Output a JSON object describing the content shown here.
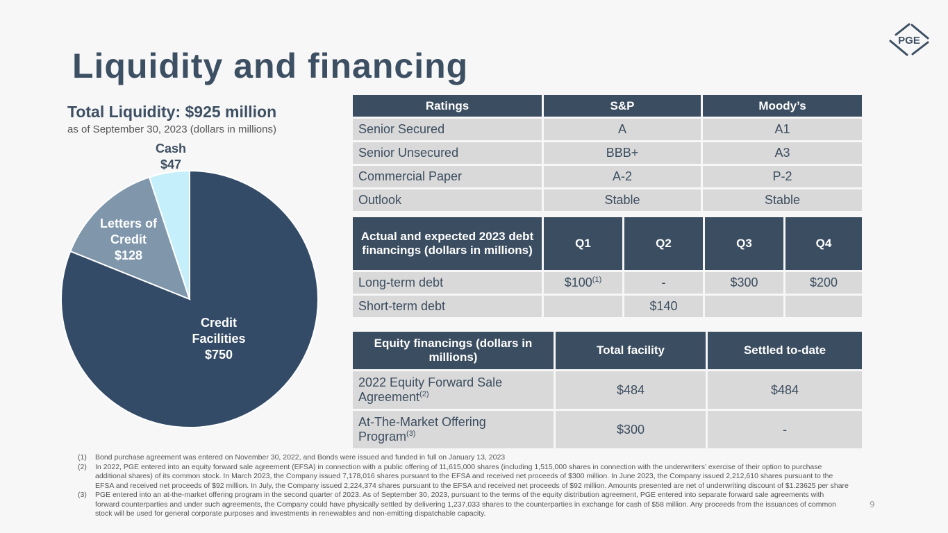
{
  "title": "Liquidity and financing",
  "logo": "PGE",
  "liquidity": {
    "title": "Total Liquidity: $925 million",
    "subtitle": "as of September 30, 2023 (dollars in millions)"
  },
  "chart_data": {
    "type": "pie",
    "title": "Total Liquidity: $925 million",
    "subtitle": "as of September 30, 2023 (dollars in millions)",
    "slices": [
      {
        "label": "Credit Facilities",
        "value": 750,
        "value_label": "$750",
        "color": "#334b66"
      },
      {
        "label": "Letters of Credit",
        "value": 128,
        "value_label": "$128",
        "color": "#7f96ab"
      },
      {
        "label": "Cash",
        "value": 47,
        "value_label": "$47",
        "color": "#c5f0fb"
      }
    ]
  },
  "ratings": {
    "headers": [
      "Ratings",
      "S&P",
      "Moody’s"
    ],
    "rows": [
      [
        "Senior Secured",
        "A",
        "A1"
      ],
      [
        "Senior Unsecured",
        "BBB+",
        "A3"
      ],
      [
        "Commercial Paper",
        "A-2",
        "P-2"
      ],
      [
        "Outlook",
        "Stable",
        "Stable"
      ]
    ]
  },
  "debt": {
    "headers": [
      "Actual and expected 2023 debt financings (dollars in millions)",
      "Q1",
      "Q2",
      "Q3",
      "Q4"
    ],
    "rows": [
      [
        "Long-term debt",
        "$100",
        "-",
        "$300",
        "$200"
      ],
      [
        "Short-term debt",
        "",
        "$140",
        "",
        ""
      ]
    ],
    "q1_note": "(1)"
  },
  "equity": {
    "headers": [
      "Equity financings (dollars in millions)",
      "Total facility",
      "Settled to-date"
    ],
    "rows": [
      [
        "2022 Equity Forward Sale Agreement",
        "$484",
        "$484"
      ],
      [
        "At-The-Market Offering Program",
        "$300",
        "-"
      ]
    ],
    "notes": [
      "(2)",
      "(3)"
    ]
  },
  "footnotes": [
    {
      "n": "(1)",
      "text": "Bond purchase agreement was entered on November 30, 2022, and Bonds were issued and funded in full on January 13, 2023"
    },
    {
      "n": "(2)",
      "text": "In 2022, PGE entered into an equity forward sale agreement (EFSA) in connection with a public offering of 11,615,000 shares (including 1,515,000 shares in connection with the underwriters’ exercise of their option to purchase additional shares) of its common stock. In March 2023, the Company issued 7,178,016 shares pursuant to the EFSA and received net proceeds of $300 million. In June 2023, the Company issued 2,212,610 shares pursuant to the EFSA and received net proceeds of $92 million. In July, the Company issued 2,224,374 shares pursuant to the EFSA and received net proceeds of $92 million. Amounts presented are net of underwriting discount of $1.23625 per share"
    },
    {
      "n": "(3)",
      "text": "PGE entered into an at-the-market offering program in the second quarter of 2023. As of September 30, 2023, pursuant to the terms of the equity distribution agreement, PGE entered into separate forward sale agreements with forward counterparties and under such agreements, the Company could have physically settled by delivering 1,237,033 shares to the counterparties in exchange for cash of $58 million. Any proceeds from the issuances of common stock will be used for general corporate purposes and investments in renewables and non-emitting dispatchable capacity."
    }
  ],
  "page_number": "9"
}
